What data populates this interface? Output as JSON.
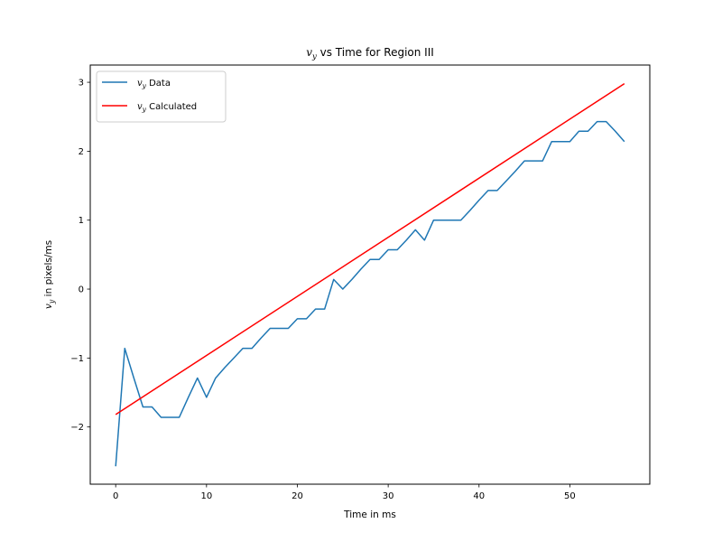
{
  "chart_data": {
    "type": "line",
    "title_var": "v",
    "title_sub": "y",
    "title_rest": " vs Time for Region III",
    "xlabel": "Time in ms",
    "ylabel_var": "v",
    "ylabel_sub": "y",
    "ylabel_rest": " in pixels/ms",
    "xlim": [
      -2.8,
      58.8
    ],
    "ylim": [
      -2.83,
      3.25
    ],
    "xticks": [
      0,
      10,
      20,
      30,
      40,
      50
    ],
    "yticks": [
      -2,
      -1,
      0,
      1,
      2,
      3
    ],
    "ytick_labels": [
      "−2",
      "−1",
      "0",
      "1",
      "2",
      "3"
    ],
    "grid": false,
    "legend_position": "upper-left",
    "series": [
      {
        "name_var": "v",
        "name_sub": "y",
        "name_rest": " Data",
        "color": "#1f77b4",
        "x": [
          0,
          1,
          2,
          3,
          4,
          5,
          6,
          7,
          8,
          9,
          10,
          11,
          12,
          13,
          14,
          15,
          16,
          17,
          18,
          19,
          20,
          21,
          22,
          23,
          24,
          25,
          26,
          27,
          28,
          29,
          30,
          31,
          32,
          33,
          34,
          35,
          36,
          37,
          38,
          39,
          40,
          41,
          42,
          43,
          44,
          45,
          46,
          47,
          48,
          49,
          50,
          51,
          52,
          53,
          54,
          55,
          56
        ],
        "y": [
          -2.57,
          -0.86,
          -1.29,
          -1.71,
          -1.71,
          -1.86,
          -1.86,
          -1.86,
          -1.57,
          -1.29,
          -1.57,
          -1.29,
          -1.14,
          -1.0,
          -0.86,
          -0.86,
          -0.71,
          -0.57,
          -0.57,
          -0.57,
          -0.43,
          -0.43,
          -0.29,
          -0.29,
          0.14,
          0.0,
          0.14,
          0.29,
          0.43,
          0.43,
          0.57,
          0.57,
          0.71,
          0.86,
          0.71,
          1.0,
          1.0,
          1.0,
          1.0,
          1.14,
          1.29,
          1.43,
          1.43,
          1.57,
          1.71,
          1.86,
          1.86,
          1.86,
          2.14,
          2.14,
          2.14,
          2.29,
          2.29,
          2.43,
          2.43,
          2.29,
          2.14
        ]
      },
      {
        "name_var": "v",
        "name_sub": "y",
        "name_rest": " Calculated",
        "color": "#ff0000",
        "x": [
          0,
          56
        ],
        "y": [
          -1.82,
          2.98
        ]
      }
    ]
  }
}
